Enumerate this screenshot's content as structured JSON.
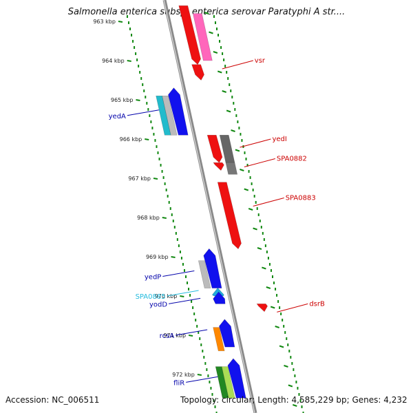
{
  "title": "Salmonella enterica subsp. enterica serovar Paratyphi A str....",
  "footer": {
    "accession": "Accession: NC_006511",
    "stats": "Topology: circular; Length: 4,585,229 bp; Genes: 4,232"
  },
  "ruler_unit": "kbp",
  "ruler_ticks": [
    963,
    964,
    965,
    966,
    967,
    968,
    969,
    970,
    971,
    972
  ],
  "colors": {
    "forward_label": "#cc0000",
    "reverse_label": "#0000aa",
    "rna_label": "#22bbdd",
    "backbone": "#8a8a8a",
    "tick": "#118811"
  },
  "features": [
    {
      "strand": "forward",
      "start": 962.6,
      "end": 964.1,
      "color": "#ee1111",
      "arrow": true
    },
    {
      "strand": "forward",
      "start": 964.1,
      "end": 964.5,
      "color": "#ee1111",
      "arrow": true
    },
    {
      "strand": "forward",
      "start": 962.8,
      "end": 964.0,
      "color": "#ff66bb",
      "lane": 2
    },
    {
      "strand": "forward",
      "start": 965.9,
      "end": 966.6,
      "color": "#ee1111",
      "arrow": true
    },
    {
      "strand": "forward",
      "start": 966.6,
      "end": 966.8,
      "color": "#ee1111",
      "arrow": true
    },
    {
      "strand": "forward",
      "start": 965.9,
      "end": 966.6,
      "color": "#666666",
      "lane": 2
    },
    {
      "strand": "forward",
      "start": 966.6,
      "end": 966.9,
      "color": "#777777",
      "lane": 2
    },
    {
      "strand": "forward",
      "start": 967.1,
      "end": 968.8,
      "color": "#ee1111",
      "arrow": true
    },
    {
      "strand": "forward",
      "start": 970.2,
      "end": 970.4,
      "color": "#ee1111",
      "arrow": true,
      "lane": 2
    },
    {
      "strand": "reverse",
      "start": 964.9,
      "end": 965.9,
      "color": "#22bbcc",
      "lane": 0
    },
    {
      "strand": "reverse",
      "start": 964.9,
      "end": 965.9,
      "color": "#bbbbbb",
      "lane": 1
    },
    {
      "strand": "reverse",
      "start": 964.8,
      "end": 965.9,
      "color": "#1111ee",
      "lane": 2,
      "arrow": true
    },
    {
      "strand": "reverse",
      "start": 969.1,
      "end": 969.8,
      "color": "#bbbbbb",
      "lane": 1
    },
    {
      "strand": "reverse",
      "start": 968.9,
      "end": 969.8,
      "color": "#1111ee",
      "lane": 2,
      "arrow": true
    },
    {
      "strand": "reverse",
      "start": 969.9,
      "end": 970.0,
      "color": "#22aadd",
      "lane": 2,
      "arrow": true
    },
    {
      "strand": "reverse",
      "start": 970.0,
      "end": 970.2,
      "color": "#1111ee",
      "lane": 2,
      "arrow": true
    },
    {
      "strand": "reverse",
      "start": 970.8,
      "end": 971.4,
      "color": "#ff8800",
      "lane": 1
    },
    {
      "strand": "reverse",
      "start": 970.7,
      "end": 971.3,
      "color": "#1111ee",
      "lane": 2,
      "arrow": true
    },
    {
      "strand": "reverse",
      "start": 971.8,
      "end": 972.6,
      "color": "#228822",
      "lane": 0
    },
    {
      "strand": "reverse",
      "start": 971.8,
      "end": 972.6,
      "color": "#aadd55",
      "lane": 1
    },
    {
      "strand": "reverse",
      "start": 971.7,
      "end": 972.6,
      "color": "#1111ee",
      "lane": 2,
      "arrow": true
    }
  ],
  "labels": [
    {
      "text": "vsr",
      "side": "right",
      "pos": 964.0,
      "type": "forward"
    },
    {
      "text": "yedI",
      "side": "right",
      "pos": 966.0,
      "type": "forward"
    },
    {
      "text": "SPA0882",
      "side": "right",
      "pos": 966.5,
      "type": "forward"
    },
    {
      "text": "SPA0883",
      "side": "right",
      "pos": 967.5,
      "type": "forward"
    },
    {
      "text": "dsrB",
      "side": "right",
      "pos": 970.2,
      "type": "forward"
    },
    {
      "text": "yedA",
      "side": "left",
      "pos": 965.4,
      "type": "reverse"
    },
    {
      "text": "yedP",
      "side": "left",
      "pos": 969.5,
      "type": "reverse"
    },
    {
      "text": "SPA0885",
      "side": "left",
      "pos": 970.0,
      "type": "rna"
    },
    {
      "text": "yodD",
      "side": "left",
      "pos": 970.2,
      "type": "reverse"
    },
    {
      "text": "rcsA",
      "side": "left",
      "pos": 971.0,
      "type": "reverse"
    },
    {
      "text": "fliR",
      "side": "left",
      "pos": 972.2,
      "type": "reverse"
    }
  ]
}
